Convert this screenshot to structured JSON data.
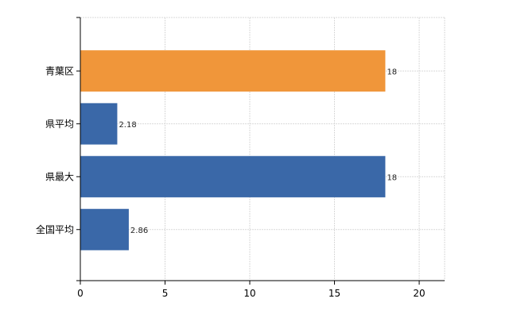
{
  "chart_data": {
    "type": "bar",
    "orientation": "horizontal",
    "categories": [
      "青葉区",
      "県平均",
      "県最大",
      "全国平均"
    ],
    "values": [
      18,
      2.18,
      18,
      2.86
    ],
    "data_labels": [
      "18",
      "2.18",
      "18",
      "2.86"
    ],
    "colors": [
      "#f0963a",
      "#3a68a8",
      "#3a68a8",
      "#3a68a8"
    ],
    "xlim": [
      0,
      21.5
    ],
    "x_ticks": [
      0,
      5,
      10,
      15,
      20
    ],
    "x_tick_labels": [
      "0",
      "5",
      "10",
      "15",
      "20"
    ],
    "grid": true,
    "legend": "none"
  }
}
